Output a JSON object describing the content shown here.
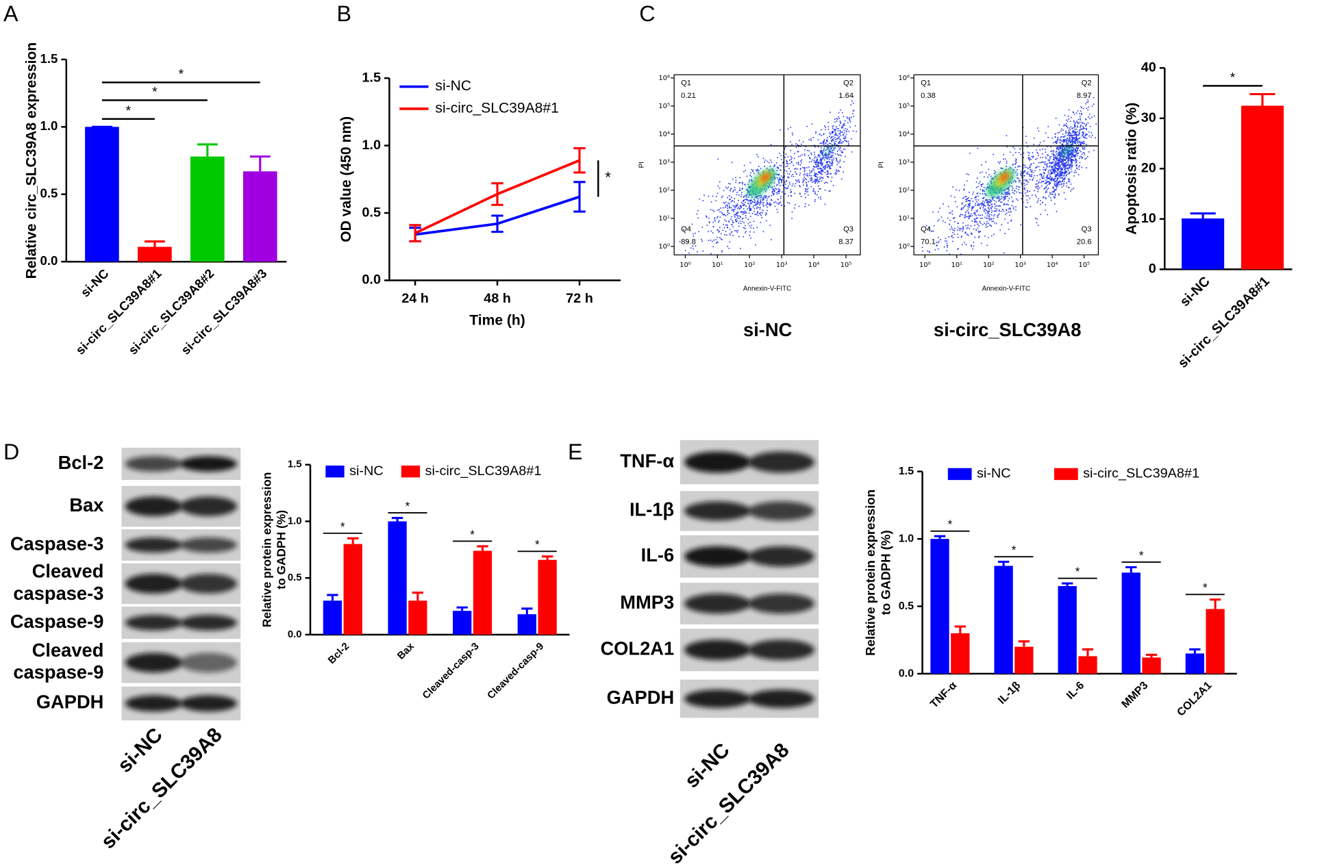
{
  "chart_data": [
    {
      "type": "bar",
      "panel": "A",
      "ylabel": "Relative circ_SLC39A8 expression",
      "categories": [
        "si-NC",
        "si-circ_SLC39A8#1",
        "si-circ_SLC39A8#2",
        "si-circ_SLC39A8#3"
      ],
      "values": [
        1.0,
        0.11,
        0.78,
        0.67
      ],
      "errors": [
        0,
        0.04,
        0.09,
        0.11
      ],
      "colors": [
        "#0000ff",
        "#ff0000",
        "#00c800",
        "#a000e0"
      ],
      "ylim": [
        0,
        1.5
      ],
      "yticks": [
        {
          "value": 0,
          "label": "0.0"
        },
        0.5,
        {
          "value": 1,
          "label": "1.0"
        },
        1.5
      ],
      "significance": [
        {
          "pair": [
            0,
            1
          ],
          "label": "*"
        },
        {
          "pair": [
            0,
            2
          ],
          "label": "*"
        },
        {
          "pair": [
            0,
            3
          ],
          "label": "*"
        }
      ]
    },
    {
      "type": "line",
      "panel": "B",
      "xlabel": "Time (h)",
      "ylabel": "OD value (450 nm)",
      "categories": [
        "24 h",
        "48 h",
        "72 h"
      ],
      "series": [
        {
          "name": "si-NC",
          "color": "#0000ff",
          "values": [
            0.34,
            0.42,
            0.62
          ],
          "errors": [
            0.05,
            0.06,
            0.11
          ]
        },
        {
          "name": "si-circ_SLC39A8#1",
          "color": "#ff0000",
          "values": [
            0.35,
            0.64,
            0.89
          ],
          "errors": [
            0.06,
            0.08,
            0.09
          ]
        }
      ],
      "ylim": [
        0,
        1.5
      ],
      "yticks": [
        {
          "value": 0,
          "label": "0.0"
        },
        0.5,
        {
          "value": 1,
          "label": "1.0"
        },
        1.5
      ],
      "significance": [
        {
          "category": 2,
          "label": "*"
        }
      ]
    },
    {
      "type": "flow",
      "panel": "C",
      "title": "si-NC",
      "xlabel": "Annexin-V-FITC",
      "ylabel": "PI",
      "xscale": "log",
      "yscale": "log",
      "xlim": [
        0.45,
        280000
      ],
      "ylim": [
        0.5,
        1300000
      ],
      "xticks": [
        {
          "value": 1,
          "label": "10⁰"
        },
        {
          "value": 10,
          "label": "10¹"
        },
        {
          "value": 100,
          "label": "10²"
        },
        {
          "value": 1000,
          "label": "10³"
        },
        {
          "value": 10000,
          "label": "10⁴"
        },
        {
          "value": 100000,
          "label": "10⁵"
        }
      ],
      "yticks": [
        {
          "value": 1,
          "label": "10⁰"
        },
        {
          "value": 10,
          "label": "10¹"
        },
        {
          "value": 100,
          "label": "10²"
        },
        {
          "value": 1000,
          "label": "10³"
        },
        {
          "value": 10000,
          "label": "10⁴"
        },
        {
          "value": 100000,
          "label": "10⁵"
        },
        {
          "value": 1000000,
          "label": "10⁶"
        }
      ],
      "gate": [
        1170,
        3800
      ],
      "quadrants": [
        {
          "name": "Q1",
          "value": 0.21
        },
        {
          "name": "Q2",
          "value": 1.64
        },
        {
          "name": "Q3",
          "value": 8.37
        },
        {
          "name": "Q4",
          "value": 89.8
        }
      ]
    },
    {
      "type": "flow",
      "title": "si-circ_SLC39A8",
      "xlabel": "Annexin-V-FITC",
      "ylabel": "PI",
      "xscale": "log",
      "yscale": "log",
      "xlim": [
        0.45,
        280000
      ],
      "ylim": [
        0.5,
        1300000
      ],
      "xticks": [
        {
          "value": 1,
          "label": "10⁰"
        },
        {
          "value": 10,
          "label": "10¹"
        },
        {
          "value": 100,
          "label": "10²"
        },
        {
          "value": 1000,
          "label": "10³"
        },
        {
          "value": 10000,
          "label": "10⁴"
        },
        {
          "value": 100000,
          "label": "10⁵"
        }
      ],
      "yticks": [
        {
          "value": 1,
          "label": "10⁰"
        },
        {
          "value": 10,
          "label": "10¹"
        },
        {
          "value": 100,
          "label": "10²"
        },
        {
          "value": 1000,
          "label": "10³"
        },
        {
          "value": 10000,
          "label": "10⁴"
        },
        {
          "value": 100000,
          "label": "10⁵"
        },
        {
          "value": 1000000,
          "label": "10⁶"
        }
      ],
      "gate": [
        1170,
        3800
      ],
      "quadrants": [
        {
          "name": "Q1",
          "value": 0.38
        },
        {
          "name": "Q2",
          "value": 8.97
        },
        {
          "name": "Q3",
          "value": 20.6
        },
        {
          "name": "Q4",
          "value": 70.1
        }
      ]
    },
    {
      "type": "bar",
      "ylabel": "Apoptosis ratio (%)",
      "categories": [
        "si-NC",
        "si-circ_SLC39A8#1"
      ],
      "values": [
        10.1,
        32.5
      ],
      "errors": [
        1.0,
        2.3
      ],
      "colors": [
        "#0000ff",
        "#ff0000"
      ],
      "ylim": [
        0,
        40
      ],
      "yticks": [
        0,
        10,
        20,
        30,
        40
      ],
      "significance": [
        {
          "pair": [
            0,
            1
          ],
          "label": "*"
        }
      ]
    },
    {
      "type": "blot",
      "panel": "D",
      "bands": [
        "Bcl-2",
        "Bax",
        "Caspase-3",
        [
          "Cleaved",
          "caspase-3"
        ],
        "Caspase-9",
        [
          "Cleaved",
          "caspase-9"
        ],
        "GAPDH"
      ],
      "lanes": [
        "si-NC",
        "si-circ_SLC39A8"
      ]
    },
    {
      "type": "bar",
      "ylabel": [
        "Relative protein expression",
        "to GADPH (%)"
      ],
      "categories": [
        "Bcl-2",
        "Bax",
        "Cleaved-casp-3",
        "Cleaved-casp-9"
      ],
      "series": [
        {
          "name": "si-NC",
          "color": "#0000ff",
          "values": [
            0.3,
            1.0,
            0.21,
            0.18
          ],
          "errors": [
            0.05,
            0.03,
            0.03,
            0.05
          ]
        },
        {
          "name": "si-circ_SLC39A8#1",
          "color": "#ff0000",
          "values": [
            0.8,
            0.3,
            0.74,
            0.66
          ],
          "errors": [
            0.05,
            0.07,
            0.04,
            0.03
          ]
        }
      ],
      "ylim": [
        0,
        1.5
      ],
      "yticks": [
        {
          "value": 0,
          "label": "0.0"
        },
        0.5,
        {
          "value": 1,
          "label": "1.0"
        },
        1.5
      ],
      "significance": [
        {
          "category": 0,
          "label": "*"
        },
        {
          "category": 1,
          "label": "*"
        },
        {
          "category": 2,
          "label": "*"
        },
        {
          "category": 3,
          "label": "*"
        }
      ]
    },
    {
      "type": "blot",
      "panel": "E",
      "bands": [
        "TNF-α",
        "IL-1β",
        "IL-6",
        "MMP3",
        "COL2A1",
        "GAPDH"
      ],
      "lanes": [
        "si-NC",
        "si-circ_SLC39A8"
      ]
    },
    {
      "type": "bar",
      "ylabel": [
        "Relative protein expression",
        "to GADPH (%)"
      ],
      "categories": [
        "TNF-α",
        "IL-1β",
        "IL-6",
        "MMP3",
        "COL2A1"
      ],
      "series": [
        {
          "name": "si-NC",
          "color": "#0000ff",
          "values": [
            1.0,
            0.8,
            0.65,
            0.75,
            0.15
          ],
          "errors": [
            0.02,
            0.03,
            0.02,
            0.04,
            0.03
          ]
        },
        {
          "name": "si-circ_SLC39A8#1",
          "color": "#ff0000",
          "values": [
            0.3,
            0.2,
            0.13,
            0.12,
            0.48
          ],
          "errors": [
            0.05,
            0.04,
            0.05,
            0.02,
            0.07
          ]
        }
      ],
      "ylim": [
        0,
        1.5
      ],
      "yticks": [
        {
          "value": 0,
          "label": "0.0"
        },
        0.5,
        {
          "value": 1,
          "label": "1.0"
        },
        1.5
      ],
      "significance": [
        {
          "category": 0,
          "label": "*"
        },
        {
          "category": 1,
          "label": "*"
        },
        {
          "category": 2,
          "label": "*"
        },
        {
          "category": 3,
          "label": "*"
        },
        {
          "category": 4,
          "label": "*"
        }
      ]
    }
  ]
}
